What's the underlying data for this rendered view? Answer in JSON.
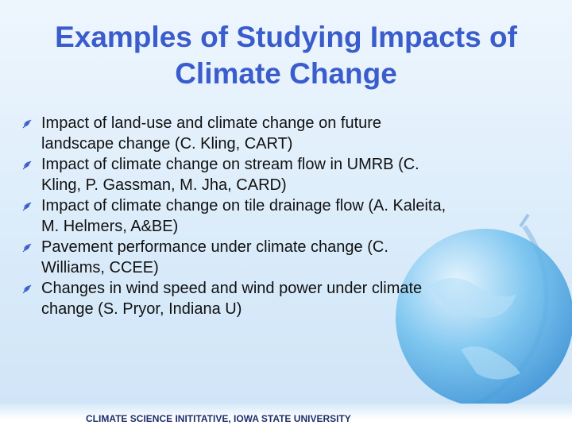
{
  "title": "Examples of Studying Impacts of Climate Change",
  "bullets": [
    "Impact of land-use and climate change on future landscape change (C. Kling, CART)",
    "Impact of climate change on stream flow in UMRB (C. Kling, P. Gassman, M. Jha, CARD)",
    "Impact of climate change on tile drainage flow (A. Kaleita, M. Helmers, A&BE)",
    "Pavement performance under climate change (C. Williams, CCEE)",
    "Changes in wind speed and wind power under climate change (S. Pryor, Indiana U)"
  ],
  "footer": "CLIMATE SCIENCE INITITATIVE, IOWA STATE UNIVERSITY"
}
